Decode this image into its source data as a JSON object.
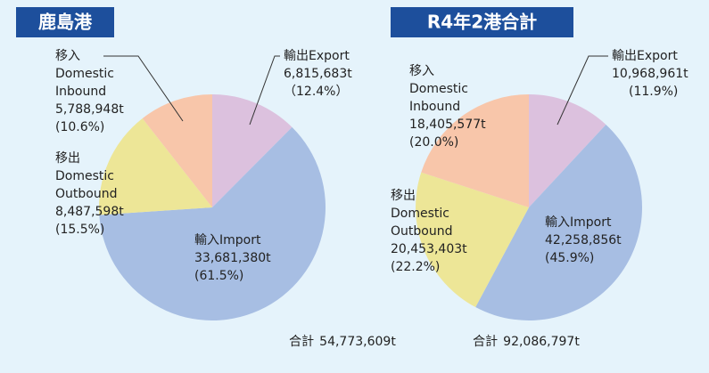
{
  "chart_data": [
    {
      "type": "pie",
      "title": "鹿島港",
      "categories": [
        [
          "輸出Export"
        ],
        [
          "輸入Import"
        ],
        [
          "移出",
          "Domestic",
          "Outbound"
        ],
        [
          "移入",
          "Domestic",
          "Inbound"
        ]
      ],
      "values": [
        6815683,
        33681380,
        8487598,
        5788948
      ],
      "value_labels": [
        "6,815,683t",
        "33,681,380t",
        "8,487,598t",
        "5,788,948t"
      ],
      "percents": [
        12.4,
        61.5,
        15.5,
        10.6
      ],
      "percent_labels": [
        "（12.4%）",
        "(61.5%)",
        "(15.5%)",
        "(10.6%)"
      ],
      "colors": [
        "#dcc1de",
        "#a7bee3",
        "#ede697",
        "#f8c6aa"
      ],
      "total": {
        "label": "合計",
        "value": 54773609,
        "value_label": "54,773,609t"
      }
    },
    {
      "type": "pie",
      "title": "R4年2港合計",
      "categories": [
        [
          "輸出Export"
        ],
        [
          "輸入Import"
        ],
        [
          "移出",
          "Domestic",
          "Outbound"
        ],
        [
          "移入",
          "Domestic",
          "Inbound"
        ]
      ],
      "values": [
        10968961,
        42258856,
        20453403,
        18405577
      ],
      "value_labels": [
        "10,968,961t",
        "42,258,856t",
        "20,453,403t",
        "18,405,577t"
      ],
      "percents": [
        11.9,
        45.9,
        22.2,
        20.0
      ],
      "percent_labels": [
        "(11.9%)",
        "(45.9%)",
        "(22.2%)",
        "(20.0%)"
      ],
      "colors": [
        "#dcc1de",
        "#a7bee3",
        "#ede697",
        "#f8c6aa"
      ],
      "total": {
        "label": "合計",
        "value": 92086797,
        "value_label": "92,086,797t"
      }
    }
  ]
}
